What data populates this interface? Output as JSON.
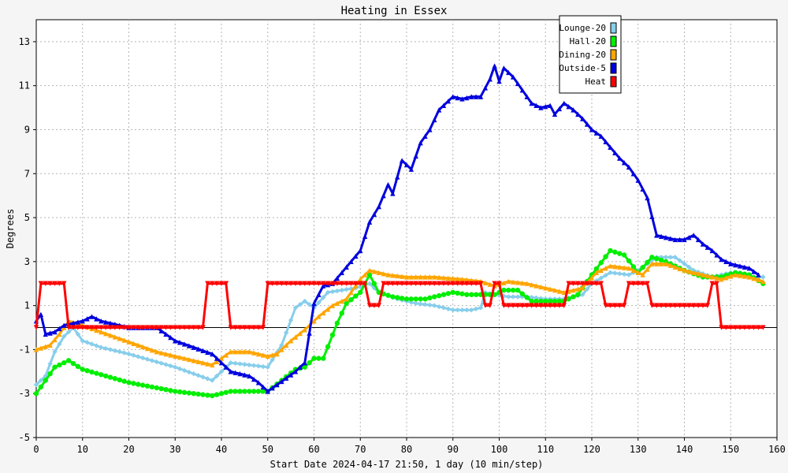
{
  "chart_data": {
    "type": "line",
    "title": "Heating in Essex",
    "xlabel": "Start Date 2024-04-17 21:50, 1 day (10 min/step)",
    "ylabel": "Degrees",
    "xlim": [
      0,
      160
    ],
    "ylim": [
      -5,
      14
    ],
    "x_ticks": [
      0,
      10,
      20,
      30,
      40,
      50,
      60,
      70,
      80,
      90,
      100,
      110,
      120,
      130,
      140,
      150,
      160
    ],
    "y_ticks": [
      -5,
      -3,
      -1,
      1,
      3,
      5,
      7,
      9,
      11,
      13
    ],
    "grid": true,
    "legend_position": "top-right",
    "series": [
      {
        "name": "Lounge-20",
        "color": "#87ceeb",
        "marker": "diamond",
        "points": [
          [
            0,
            -2.6
          ],
          [
            2,
            -2.2
          ],
          [
            4,
            -1.1
          ],
          [
            6,
            -0.4
          ],
          [
            8,
            0
          ],
          [
            10,
            -0.6
          ],
          [
            14,
            -0.9
          ],
          [
            20,
            -1.2
          ],
          [
            25,
            -1.5
          ],
          [
            30,
            -1.8
          ],
          [
            34,
            -2.1
          ],
          [
            38,
            -2.4
          ],
          [
            42,
            -1.6
          ],
          [
            46,
            -1.7
          ],
          [
            50,
            -1.8
          ],
          [
            53,
            -0.8
          ],
          [
            56,
            0.9
          ],
          [
            58,
            1.2
          ],
          [
            60,
            0.9
          ],
          [
            63,
            1.6
          ],
          [
            66,
            1.7
          ],
          [
            69,
            1.8
          ],
          [
            72,
            2.0
          ],
          [
            74,
            1.6
          ],
          [
            78,
            1.3
          ],
          [
            82,
            1.1
          ],
          [
            86,
            1.0
          ],
          [
            90,
            0.8
          ],
          [
            94,
            0.8
          ],
          [
            96,
            0.9
          ],
          [
            97,
            1.6
          ],
          [
            99,
            1.5
          ],
          [
            102,
            1.4
          ],
          [
            106,
            1.4
          ],
          [
            110,
            1.3
          ],
          [
            114,
            1.3
          ],
          [
            118,
            1.5
          ],
          [
            120,
            2.0
          ],
          [
            124,
            2.5
          ],
          [
            128,
            2.4
          ],
          [
            130,
            2.6
          ],
          [
            134,
            3.2
          ],
          [
            138,
            3.2
          ],
          [
            142,
            2.6
          ],
          [
            146,
            2.3
          ],
          [
            150,
            2.5
          ],
          [
            154,
            2.3
          ],
          [
            157,
            2.3
          ]
        ]
      },
      {
        "name": "Hall-20",
        "color": "#00ee00",
        "marker": "circle",
        "points": [
          [
            0,
            -3.0
          ],
          [
            2,
            -2.4
          ],
          [
            4,
            -1.8
          ],
          [
            7,
            -1.5
          ],
          [
            10,
            -1.9
          ],
          [
            15,
            -2.2
          ],
          [
            20,
            -2.5
          ],
          [
            25,
            -2.7
          ],
          [
            30,
            -2.9
          ],
          [
            34,
            -3.0
          ],
          [
            38,
            -3.1
          ],
          [
            42,
            -2.9
          ],
          [
            46,
            -2.9
          ],
          [
            50,
            -2.9
          ],
          [
            53,
            -2.4
          ],
          [
            56,
            -1.9
          ],
          [
            58,
            -1.8
          ],
          [
            60,
            -1.4
          ],
          [
            62,
            -1.4
          ],
          [
            65,
            0.2
          ],
          [
            67,
            1.1
          ],
          [
            70,
            1.6
          ],
          [
            72,
            2.4
          ],
          [
            74,
            1.6
          ],
          [
            77,
            1.4
          ],
          [
            80,
            1.3
          ],
          [
            84,
            1.3
          ],
          [
            88,
            1.5
          ],
          [
            90,
            1.6
          ],
          [
            93,
            1.5
          ],
          [
            96,
            1.5
          ],
          [
            99,
            1.5
          ],
          [
            101,
            1.7
          ],
          [
            104,
            1.7
          ],
          [
            107,
            1.2
          ],
          [
            110,
            1.2
          ],
          [
            114,
            1.2
          ],
          [
            117,
            1.5
          ],
          [
            120,
            2.4
          ],
          [
            124,
            3.5
          ],
          [
            127,
            3.3
          ],
          [
            130,
            2.5
          ],
          [
            133,
            3.2
          ],
          [
            136,
            3.0
          ],
          [
            140,
            2.6
          ],
          [
            144,
            2.3
          ],
          [
            148,
            2.3
          ],
          [
            151,
            2.5
          ],
          [
            154,
            2.4
          ],
          [
            157,
            2.0
          ]
        ]
      },
      {
        "name": "Dining-20",
        "color": "#ffa500",
        "marker": "triangle",
        "points": [
          [
            0,
            -1.0
          ],
          [
            3,
            -0.8
          ],
          [
            5,
            -0.3
          ],
          [
            7,
            0.3
          ],
          [
            10,
            0.1
          ],
          [
            14,
            -0.2
          ],
          [
            18,
            -0.5
          ],
          [
            22,
            -0.8
          ],
          [
            26,
            -1.1
          ],
          [
            30,
            -1.3
          ],
          [
            34,
            -1.5
          ],
          [
            38,
            -1.7
          ],
          [
            42,
            -1.1
          ],
          [
            46,
            -1.1
          ],
          [
            50,
            -1.3
          ],
          [
            52,
            -1.2
          ],
          [
            55,
            -0.6
          ],
          [
            58,
            -0.1
          ],
          [
            61,
            0.5
          ],
          [
            64,
            1.0
          ],
          [
            67,
            1.3
          ],
          [
            70,
            2.2
          ],
          [
            72,
            2.6
          ],
          [
            76,
            2.4
          ],
          [
            80,
            2.3
          ],
          [
            86,
            2.3
          ],
          [
            92,
            2.2
          ],
          [
            96,
            2.1
          ],
          [
            99,
            1.9
          ],
          [
            102,
            2.1
          ],
          [
            106,
            2.0
          ],
          [
            110,
            1.8
          ],
          [
            114,
            1.6
          ],
          [
            118,
            1.8
          ],
          [
            121,
            2.5
          ],
          [
            124,
            2.8
          ],
          [
            128,
            2.7
          ],
          [
            131,
            2.4
          ],
          [
            133,
            2.9
          ],
          [
            136,
            2.9
          ],
          [
            140,
            2.6
          ],
          [
            144,
            2.4
          ],
          [
            148,
            2.2
          ],
          [
            151,
            2.4
          ],
          [
            154,
            2.3
          ],
          [
            157,
            2.1
          ]
        ]
      },
      {
        "name": "Outside-5",
        "color": "#0000dd",
        "marker": "triangle",
        "points": [
          [
            0,
            0.3
          ],
          [
            1,
            0.6
          ],
          [
            2,
            -0.3
          ],
          [
            4,
            -0.2
          ],
          [
            6,
            0.1
          ],
          [
            8,
            0.2
          ],
          [
            10,
            0.3
          ],
          [
            12,
            0.5
          ],
          [
            14,
            0.3
          ],
          [
            16,
            0.2
          ],
          [
            20,
            0
          ],
          [
            26,
            0
          ],
          [
            30,
            -0.6
          ],
          [
            34,
            -0.9
          ],
          [
            38,
            -1.2
          ],
          [
            42,
            -2.0
          ],
          [
            46,
            -2.2
          ],
          [
            48,
            -2.5
          ],
          [
            50,
            -2.9
          ],
          [
            52,
            -2.6
          ],
          [
            54,
            -2.3
          ],
          [
            56,
            -2.0
          ],
          [
            58,
            -1.6
          ],
          [
            60,
            1.1
          ],
          [
            62,
            1.9
          ],
          [
            64,
            2.0
          ],
          [
            66,
            2.5
          ],
          [
            68,
            3.0
          ],
          [
            70,
            3.5
          ],
          [
            72,
            4.8
          ],
          [
            74,
            5.5
          ],
          [
            76,
            6.5
          ],
          [
            77,
            6.1
          ],
          [
            79,
            7.6
          ],
          [
            81,
            7.2
          ],
          [
            83,
            8.4
          ],
          [
            85,
            9.0
          ],
          [
            87,
            9.9
          ],
          [
            89,
            10.3
          ],
          [
            90,
            10.5
          ],
          [
            92,
            10.4
          ],
          [
            94,
            10.5
          ],
          [
            96,
            10.5
          ],
          [
            98,
            11.3
          ],
          [
            99,
            11.9
          ],
          [
            100,
            11.2
          ],
          [
            101,
            11.8
          ],
          [
            103,
            11.4
          ],
          [
            105,
            10.8
          ],
          [
            107,
            10.2
          ],
          [
            109,
            10.0
          ],
          [
            111,
            10.1
          ],
          [
            112,
            9.7
          ],
          [
            114,
            10.2
          ],
          [
            116,
            9.9
          ],
          [
            118,
            9.5
          ],
          [
            120,
            9.0
          ],
          [
            122,
            8.7
          ],
          [
            124,
            8.2
          ],
          [
            126,
            7.7
          ],
          [
            128,
            7.3
          ],
          [
            130,
            6.7
          ],
          [
            132,
            5.9
          ],
          [
            134,
            4.2
          ],
          [
            136,
            4.1
          ],
          [
            138,
            4.0
          ],
          [
            140,
            4.0
          ],
          [
            142,
            4.2
          ],
          [
            144,
            3.8
          ],
          [
            146,
            3.5
          ],
          [
            148,
            3.1
          ],
          [
            150,
            2.9
          ],
          [
            152,
            2.8
          ],
          [
            154,
            2.7
          ],
          [
            156,
            2.4
          ]
        ]
      },
      {
        "name": "Heat",
        "color": "#ff0000",
        "marker": "triangle-down",
        "points": [
          [
            0,
            0
          ],
          [
            1,
            2
          ],
          [
            6,
            2
          ],
          [
            7,
            0
          ],
          [
            36,
            0
          ],
          [
            37,
            2
          ],
          [
            41,
            2
          ],
          [
            42,
            0
          ],
          [
            49,
            0
          ],
          [
            50,
            2
          ],
          [
            71,
            2
          ],
          [
            72,
            1
          ],
          [
            74,
            1
          ],
          [
            75,
            2
          ],
          [
            96,
            2
          ],
          [
            97,
            1
          ],
          [
            98,
            1
          ],
          [
            99,
            2
          ],
          [
            100,
            2
          ],
          [
            101,
            1
          ],
          [
            114,
            1
          ],
          [
            115,
            2
          ],
          [
            122,
            2
          ],
          [
            123,
            1
          ],
          [
            127,
            1
          ],
          [
            128,
            2
          ],
          [
            132,
            2
          ],
          [
            133,
            1
          ],
          [
            145,
            1
          ],
          [
            146,
            2
          ],
          [
            147,
            2
          ],
          [
            148,
            0
          ],
          [
            157,
            0
          ]
        ]
      }
    ]
  }
}
